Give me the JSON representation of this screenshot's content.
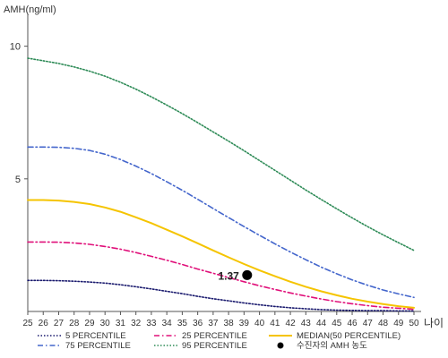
{
  "chart_data": {
    "type": "line",
    "ylabel": "AMH(ng/ml)",
    "xunit_label": "나이",
    "xlim": [
      25,
      50
    ],
    "ylim": [
      0,
      11
    ],
    "x_ticks": [
      25,
      26,
      27,
      28,
      29,
      30,
      31,
      32,
      33,
      34,
      35,
      36,
      37,
      38,
      39,
      40,
      41,
      42,
      43,
      44,
      45,
      46,
      47,
      48,
      49,
      50
    ],
    "y_ticks": [
      5,
      10
    ],
    "x": [
      25,
      26,
      27,
      28,
      29,
      30,
      31,
      32,
      33,
      34,
      35,
      36,
      37,
      38,
      39,
      40,
      41,
      42,
      43,
      44,
      45,
      46,
      47,
      48,
      49,
      50
    ],
    "series": [
      {
        "name": "5 PERCENTILE",
        "color": "#1a1a6e",
        "dash": "dot",
        "values": [
          1.17,
          1.17,
          1.16,
          1.14,
          1.11,
          1.07,
          1.01,
          0.93,
          0.85,
          0.76,
          0.67,
          0.57,
          0.48,
          0.4,
          0.32,
          0.25,
          0.19,
          0.14,
          0.1,
          0.07,
          0.05,
          0.04,
          0.03,
          0.03,
          0.02,
          0.02
        ]
      },
      {
        "name": "25 PERCENTILE",
        "color": "#e0107a",
        "dash": "dashdot",
        "values": [
          2.62,
          2.62,
          2.61,
          2.58,
          2.53,
          2.45,
          2.35,
          2.22,
          2.08,
          1.93,
          1.77,
          1.6,
          1.44,
          1.28,
          1.12,
          0.97,
          0.83,
          0.7,
          0.58,
          0.47,
          0.37,
          0.29,
          0.22,
          0.16,
          0.12,
          0.08
        ]
      },
      {
        "name": "MEDIAN(50 PERCENTILE)",
        "color": "#f5c400",
        "dash": "solid",
        "values": [
          4.2,
          4.2,
          4.18,
          4.13,
          4.05,
          3.92,
          3.76,
          3.55,
          3.33,
          3.08,
          2.83,
          2.57,
          2.3,
          2.04,
          1.79,
          1.55,
          1.33,
          1.12,
          0.93,
          0.76,
          0.61,
          0.48,
          0.37,
          0.28,
          0.2,
          0.14
        ]
      },
      {
        "name": "75 PERCENTILE",
        "color": "#4466cc",
        "dash": "dashdot",
        "values": [
          6.2,
          6.2,
          6.19,
          6.15,
          6.07,
          5.93,
          5.73,
          5.48,
          5.2,
          4.89,
          4.57,
          4.23,
          3.88,
          3.54,
          3.2,
          2.87,
          2.55,
          2.24,
          1.95,
          1.67,
          1.42,
          1.19,
          0.99,
          0.81,
          0.66,
          0.53
        ]
      },
      {
        "name": "95 PERCENTILE",
        "color": "#2e8b57",
        "dash": "dot",
        "values": [
          9.55,
          9.45,
          9.35,
          9.22,
          9.06,
          8.87,
          8.64,
          8.38,
          8.09,
          7.78,
          7.46,
          7.12,
          6.77,
          6.42,
          6.06,
          5.69,
          5.32,
          4.95,
          4.58,
          4.22,
          3.87,
          3.53,
          3.2,
          2.89,
          2.59,
          2.3
        ]
      }
    ],
    "highlight": {
      "name": "수진자의 AMH 농도",
      "x": 39.2,
      "y": 1.37,
      "label": "1.37",
      "color": "#000000"
    },
    "legend": {
      "placement": "bottom",
      "rows": [
        [
          "5 PERCENTILE",
          "25 PERCENTILE",
          "MEDIAN(50 PERCENTILE)"
        ],
        [
          "75 PERCENTILE",
          "95 PERCENTILE",
          "수진자의 AMH 농도"
        ]
      ]
    },
    "grid": false
  }
}
